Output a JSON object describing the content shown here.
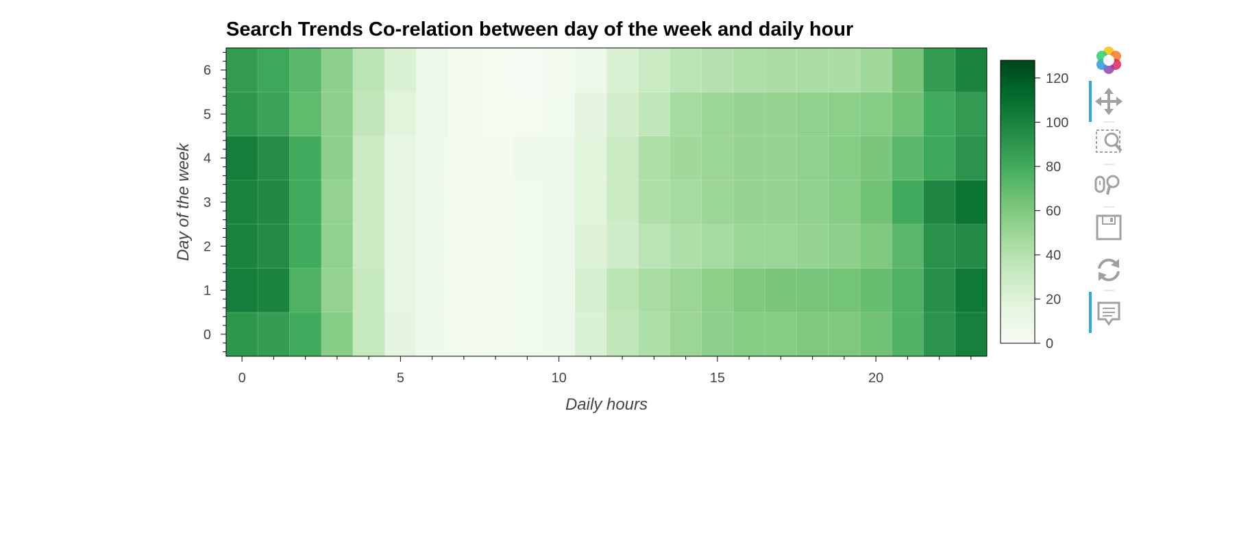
{
  "chart_data": {
    "type": "heatmap",
    "title": "Search Trends Co-relation between day of the week and daily hour",
    "xlabel": "Daily hours",
    "ylabel": "Day of the week",
    "x": [
      0,
      1,
      2,
      3,
      4,
      5,
      6,
      7,
      8,
      9,
      10,
      11,
      12,
      13,
      14,
      15,
      16,
      17,
      18,
      19,
      20,
      21,
      22,
      23
    ],
    "y": [
      0,
      1,
      2,
      3,
      4,
      5,
      6
    ],
    "xlim": [
      -0.5,
      23.5
    ],
    "ylim": [
      -0.5,
      6.5
    ],
    "x_ticks": [
      0,
      5,
      10,
      15,
      20
    ],
    "y_ticks": [
      0,
      1,
      2,
      3,
      4,
      5,
      6
    ],
    "values": [
      [
        90,
        87,
        80,
        57,
        33,
        16,
        6,
        4,
        4,
        5,
        8,
        22,
        35,
        42,
        50,
        55,
        58,
        58,
        60,
        60,
        65,
        75,
        92,
        102
      ],
      [
        103,
        100,
        76,
        53,
        32,
        14,
        6,
        4,
        4,
        5,
        10,
        24,
        37,
        45,
        50,
        56,
        60,
        62,
        63,
        64,
        68,
        76,
        94,
        105
      ],
      [
        100,
        96,
        80,
        54,
        30,
        14,
        6,
        4,
        4,
        5,
        10,
        20,
        28,
        37,
        42,
        46,
        50,
        50,
        52,
        55,
        60,
        72,
        93,
        96
      ],
      [
        100,
        97,
        80,
        53,
        30,
        14,
        6,
        4,
        4,
        5,
        10,
        18,
        30,
        42,
        46,
        50,
        52,
        52,
        54,
        58,
        65,
        80,
        98,
        107
      ],
      [
        103,
        95,
        80,
        55,
        30,
        14,
        6,
        4,
        4,
        6,
        10,
        18,
        30,
        42,
        48,
        50,
        52,
        52,
        54,
        58,
        62,
        72,
        82,
        92
      ],
      [
        90,
        84,
        70,
        55,
        35,
        18,
        10,
        4,
        3,
        3,
        5,
        16,
        26,
        35,
        46,
        50,
        52,
        52,
        54,
        56,
        58,
        65,
        80,
        88
      ],
      [
        88,
        82,
        72,
        55,
        37,
        22,
        10,
        4,
        3,
        2,
        4,
        10,
        22,
        30,
        37,
        40,
        42,
        44,
        44,
        44,
        48,
        62,
        88,
        100
      ]
    ],
    "colorbar": {
      "min": 0,
      "max": 128,
      "ticks": [
        0,
        20,
        40,
        60,
        80,
        100,
        120
      ],
      "palette": "Greens"
    },
    "colors": [
      "#f7fcf5",
      "#e5f5e0",
      "#c7e9c0",
      "#a1d99b",
      "#74c476",
      "#41ab5d",
      "#238b45",
      "#006d2c",
      "#00441b"
    ]
  },
  "toolbar": {
    "tools": [
      {
        "name": "bokeh-logo-icon",
        "active": false
      },
      {
        "name": "pan-icon",
        "active": true
      },
      {
        "name": "box-zoom-icon",
        "active": false
      },
      {
        "name": "wheel-zoom-icon",
        "active": false
      },
      {
        "name": "save-icon",
        "active": false
      },
      {
        "name": "reset-icon",
        "active": false
      },
      {
        "name": "hover-icon",
        "active": true
      }
    ],
    "active_color": "#26aae1",
    "icon_color": "#a0a0a0"
  }
}
